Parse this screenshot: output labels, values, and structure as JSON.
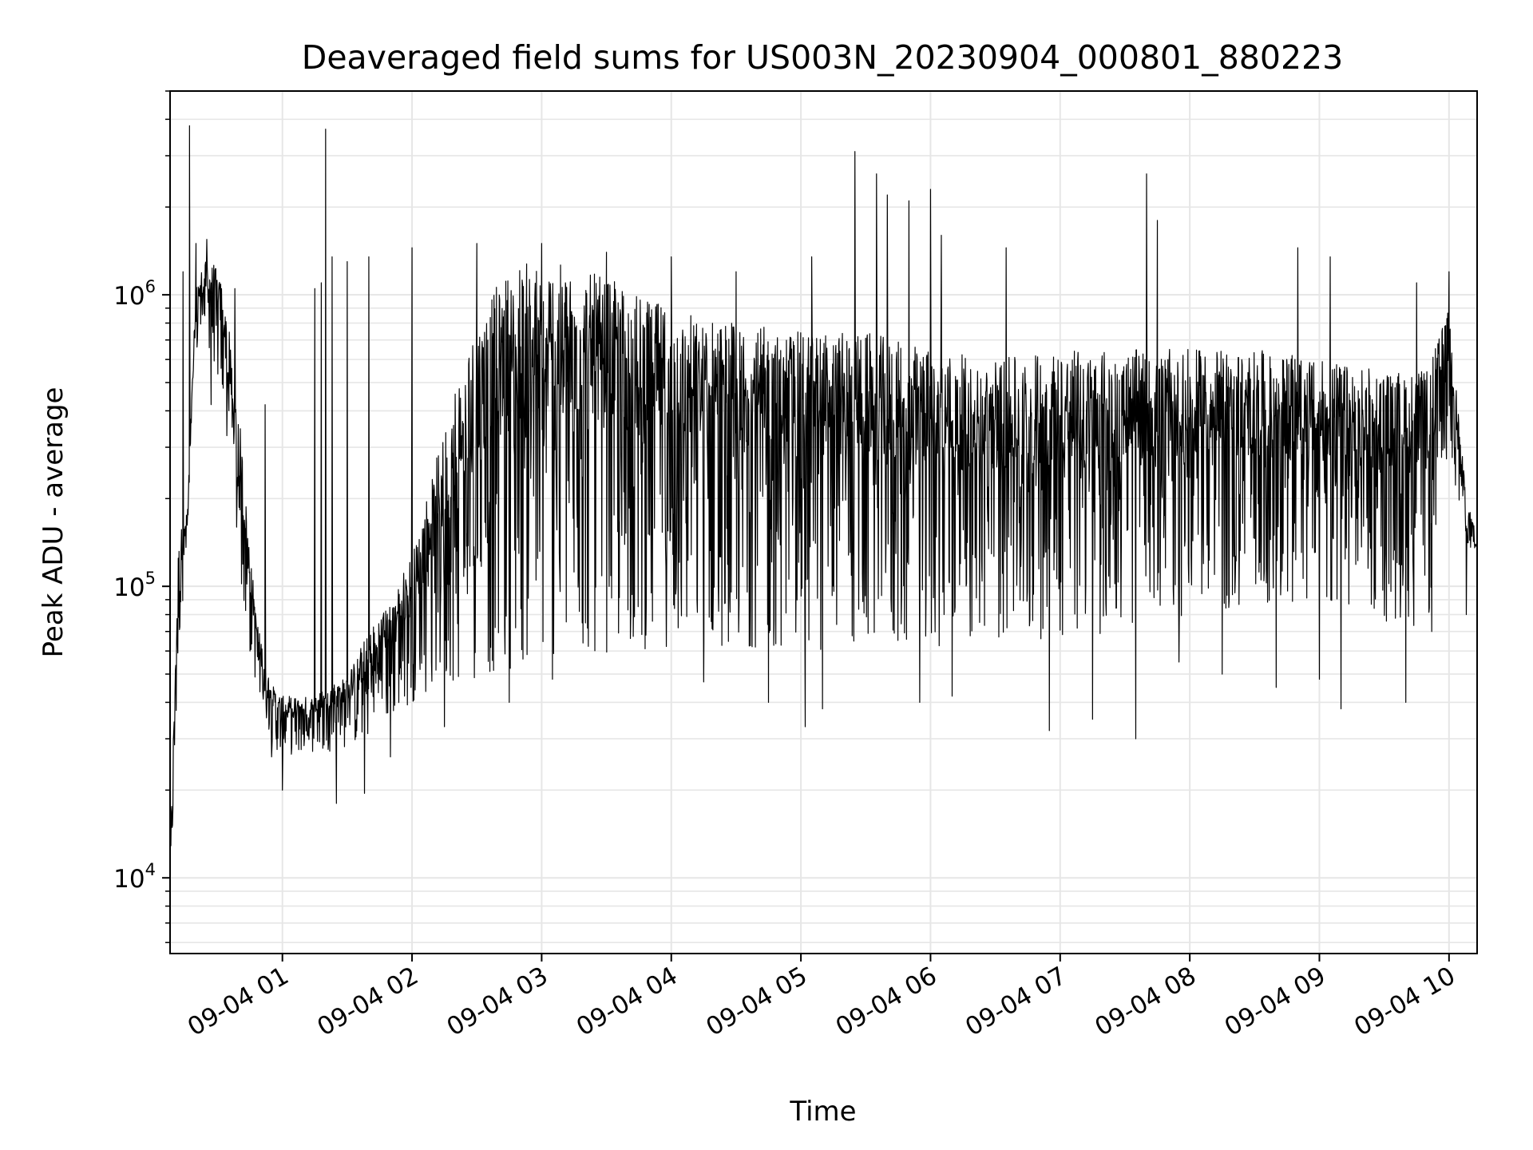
{
  "chart_data": {
    "type": "line",
    "title": "Deaveraged field sums for US003N_20230904_000801_880223",
    "xlabel": "Time",
    "ylabel": "Peak ADU - average",
    "yscale": "log",
    "ylim": [
      5500,
      5000000
    ],
    "xlim": [
      "2023-09-04 00:08",
      "2023-09-04 10:13"
    ],
    "grid": true,
    "line_color": "#000000",
    "grid_color": "#e6e6e6",
    "x_ticks": [
      {
        "value": "2023-09-04 01:00",
        "label": "09-04 01"
      },
      {
        "value": "2023-09-04 02:00",
        "label": "09-04 02"
      },
      {
        "value": "2023-09-04 03:00",
        "label": "09-04 03"
      },
      {
        "value": "2023-09-04 04:00",
        "label": "09-04 04"
      },
      {
        "value": "2023-09-04 05:00",
        "label": "09-04 05"
      },
      {
        "value": "2023-09-04 06:00",
        "label": "09-04 06"
      },
      {
        "value": "2023-09-04 07:00",
        "label": "09-04 07"
      },
      {
        "value": "2023-09-04 08:00",
        "label": "09-04 08"
      },
      {
        "value": "2023-09-04 09:00",
        "label": "09-04 09"
      },
      {
        "value": "2023-09-04 10:00",
        "label": "09-04 10"
      }
    ],
    "y_ticks": [
      {
        "value": 10000,
        "base": "10",
        "exp": "4"
      },
      {
        "value": 100000,
        "base": "10",
        "exp": "5"
      },
      {
        "value": 1000000,
        "base": "10",
        "exp": "6"
      }
    ],
    "series": [
      {
        "envelope": {
          "x": [
            "00:08",
            "00:12",
            "00:16",
            "00:20",
            "00:24",
            "00:28",
            "00:32",
            "00:36",
            "00:40",
            "00:44",
            "00:48",
            "00:52",
            "00:56",
            "01:00",
            "01:10",
            "01:20",
            "01:30",
            "01:40",
            "01:50",
            "02:00",
            "02:10",
            "02:20",
            "02:30",
            "02:40",
            "02:50",
            "03:00",
            "03:15",
            "03:30",
            "03:45",
            "04:00",
            "04:30",
            "05:00",
            "05:30",
            "06:00",
            "06:30",
            "07:00",
            "07:30",
            "08:00",
            "08:30",
            "09:00",
            "09:30",
            "09:50",
            "10:00",
            "10:05",
            "10:08",
            "10:13"
          ],
          "low": [
            7500,
            60000,
            140000,
            600000,
            700000,
            600000,
            420000,
            220000,
            110000,
            65000,
            45000,
            35000,
            28000,
            26000,
            27000,
            27000,
            28000,
            30000,
            35000,
            40000,
            44000,
            46000,
            48000,
            50000,
            53000,
            55000,
            57000,
            58000,
            60000,
            62000,
            62000,
            60000,
            60000,
            62000,
            65000,
            65000,
            70000,
            80000,
            80000,
            80000,
            75000,
            70000,
            300000,
            180000,
            150000,
            90000
          ],
          "high": [
            12000,
            150000,
            180000,
            1100000,
            1300000,
            1300000,
            1100000,
            700000,
            400000,
            160000,
            80000,
            55000,
            45000,
            42000,
            42000,
            45000,
            50000,
            70000,
            90000,
            130000,
            250000,
            500000,
            800000,
            1100000,
            1300000,
            1300000,
            1250000,
            1150000,
            1000000,
            900000,
            800000,
            750000,
            750000,
            650000,
            600000,
            650000,
            650000,
            650000,
            650000,
            600000,
            550000,
            550000,
            900000,
            350000,
            200000,
            150000
          ]
        },
        "peaks": [
          {
            "x": "00:14",
            "y": 1200000
          },
          {
            "x": "00:17",
            "y": 3800000
          },
          {
            "x": "00:20",
            "y": 1500000
          },
          {
            "x": "00:25",
            "y": 1550000
          },
          {
            "x": "00:38",
            "y": 1050000
          },
          {
            "x": "00:52",
            "y": 420000
          },
          {
            "x": "01:15",
            "y": 1050000
          },
          {
            "x": "01:18",
            "y": 1100000
          },
          {
            "x": "01:20",
            "y": 3700000
          },
          {
            "x": "01:23",
            "y": 1350000
          },
          {
            "x": "01:30",
            "y": 1300000
          },
          {
            "x": "01:40",
            "y": 1350000
          },
          {
            "x": "01:50",
            "y": 1350000
          },
          {
            "x": "02:00",
            "y": 1450000
          },
          {
            "x": "02:15",
            "y": 1650000
          },
          {
            "x": "02:30",
            "y": 1500000
          },
          {
            "x": "02:45",
            "y": 1600000
          },
          {
            "x": "03:00",
            "y": 1500000
          },
          {
            "x": "03:30",
            "y": 1400000
          },
          {
            "x": "04:00",
            "y": 1350000
          },
          {
            "x": "04:30",
            "y": 1200000
          },
          {
            "x": "05:05",
            "y": 1350000
          },
          {
            "x": "05:25",
            "y": 3100000
          },
          {
            "x": "05:35",
            "y": 2600000
          },
          {
            "x": "05:40",
            "y": 2200000
          },
          {
            "x": "05:50",
            "y": 2100000
          },
          {
            "x": "06:00",
            "y": 2300000
          },
          {
            "x": "06:05",
            "y": 1600000
          },
          {
            "x": "06:35",
            "y": 1450000
          },
          {
            "x": "06:55",
            "y": 1600000
          },
          {
            "x": "07:40",
            "y": 2600000
          },
          {
            "x": "07:45",
            "y": 1800000
          },
          {
            "x": "08:15",
            "y": 1600000
          },
          {
            "x": "08:50",
            "y": 1450000
          },
          {
            "x": "09:05",
            "y": 1350000
          },
          {
            "x": "09:45",
            "y": 1100000
          },
          {
            "x": "10:00",
            "y": 1200000
          }
        ],
        "dips": [
          {
            "x": "00:27",
            "y": 420000
          },
          {
            "x": "00:45",
            "y": 60000
          },
          {
            "x": "00:55",
            "y": 26000
          },
          {
            "x": "01:00",
            "y": 20000
          },
          {
            "x": "01:25",
            "y": 18000
          },
          {
            "x": "01:38",
            "y": 19500
          },
          {
            "x": "01:50",
            "y": 26000
          },
          {
            "x": "02:15",
            "y": 33000
          },
          {
            "x": "02:45",
            "y": 40000
          },
          {
            "x": "03:05",
            "y": 48000
          },
          {
            "x": "04:15",
            "y": 47000
          },
          {
            "x": "04:45",
            "y": 40000
          },
          {
            "x": "05:02",
            "y": 33000
          },
          {
            "x": "05:10",
            "y": 38000
          },
          {
            "x": "05:55",
            "y": 40000
          },
          {
            "x": "06:10",
            "y": 42000
          },
          {
            "x": "06:55",
            "y": 32000
          },
          {
            "x": "07:15",
            "y": 35000
          },
          {
            "x": "07:35",
            "y": 30000
          },
          {
            "x": "07:55",
            "y": 55000
          },
          {
            "x": "08:15",
            "y": 50000
          },
          {
            "x": "08:40",
            "y": 45000
          },
          {
            "x": "09:00",
            "y": 48000
          },
          {
            "x": "09:10",
            "y": 38000
          },
          {
            "x": "09:40",
            "y": 40000
          },
          {
            "x": "09:52",
            "y": 70000
          },
          {
            "x": "10:08",
            "y": 80000
          }
        ]
      }
    ]
  }
}
